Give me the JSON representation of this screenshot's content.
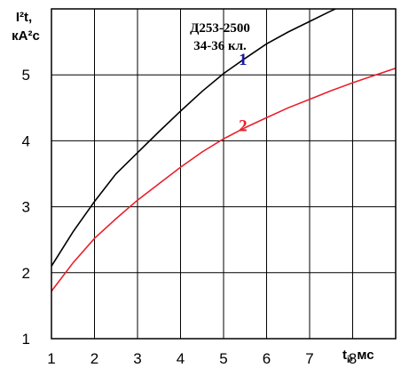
{
  "chart_data": {
    "type": "line",
    "ylabel_line1": "I²t,",
    "ylabel_line2": "кА²с",
    "xlabel_main": "t",
    "xlabel_sub": "i",
    "xlabel_unit": ", мс",
    "annotation_line1": "Д253-2500",
    "annotation_line2": "34-36 кл.",
    "xlim": [
      1,
      9
    ],
    "ylim": [
      1,
      6
    ],
    "x_ticks": [
      1,
      2,
      3,
      4,
      5,
      6,
      7,
      8,
      9
    ],
    "x_tick_labels": [
      "1",
      "2",
      "3",
      "4",
      "5",
      "6",
      "7",
      "8"
    ],
    "y_ticks": [
      1,
      2,
      3,
      4,
      5,
      6
    ],
    "y_tick_labels": [
      "1",
      "2",
      "3",
      "4",
      "5"
    ],
    "grid": true,
    "series": [
      {
        "name": "1",
        "color": "#000000",
        "label_color": "#1a1aa6",
        "label_at": [
          5.45,
          5.15
        ],
        "x": [
          1,
          1.5,
          2,
          2.5,
          3,
          3.5,
          4,
          4.5,
          5,
          5.5,
          6,
          6.5,
          7,
          7.5,
          8,
          8.5,
          9
        ],
        "y": [
          2.1,
          2.62,
          3.08,
          3.5,
          3.82,
          4.14,
          4.45,
          4.75,
          5.02,
          5.25,
          5.47,
          5.65,
          5.81,
          5.97,
          6.12,
          6.26,
          6.4
        ]
      },
      {
        "name": "2",
        "color": "#e8202a",
        "label_color": "#e8202a",
        "label_at": [
          5.45,
          4.15
        ],
        "x": [
          1,
          1.5,
          2,
          2.5,
          3,
          3.5,
          4,
          4.5,
          5,
          5.5,
          6,
          6.5,
          7,
          7.5,
          8,
          8.5,
          9
        ],
        "y": [
          1.72,
          2.15,
          2.52,
          2.82,
          3.1,
          3.35,
          3.6,
          3.83,
          4.03,
          4.2,
          4.35,
          4.5,
          4.63,
          4.76,
          4.88,
          4.99,
          5.1
        ]
      }
    ]
  }
}
